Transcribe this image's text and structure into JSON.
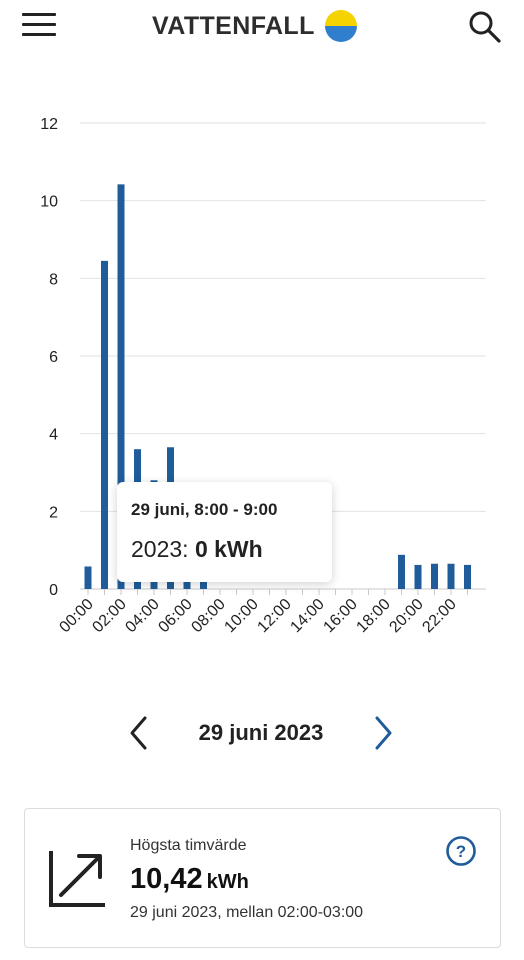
{
  "header": {
    "brand": "VATTENFALL",
    "icons": {
      "menu": "hamburger-menu-icon",
      "search": "search-icon",
      "logo": "vattenfall-logo-icon"
    },
    "colors": {
      "logo_top": "#f5d300",
      "logo_bottom": "#2f7fce"
    }
  },
  "chart_data": {
    "type": "bar",
    "categories": [
      "00:00",
      "01:00",
      "02:00",
      "03:00",
      "04:00",
      "05:00",
      "06:00",
      "07:00",
      "08:00",
      "09:00",
      "10:00",
      "11:00",
      "12:00",
      "13:00",
      "14:00",
      "15:00",
      "16:00",
      "17:00",
      "18:00",
      "19:00",
      "20:00",
      "21:00",
      "22:00",
      "23:00"
    ],
    "tick_labels": [
      "00:00",
      "02:00",
      "04:00",
      "06:00",
      "08:00",
      "10:00",
      "12:00",
      "14:00",
      "16:00",
      "18:00",
      "20:00",
      "22:00"
    ],
    "values": [
      0.58,
      8.45,
      10.42,
      3.6,
      2.8,
      3.65,
      2.0,
      1.3,
      0,
      0,
      0,
      0,
      0,
      0,
      0,
      0,
      0,
      0,
      0,
      0.88,
      0.62,
      0.65,
      0.65,
      0.62
    ],
    "ylim": [
      0,
      12
    ],
    "yticks": [
      0,
      2,
      4,
      6,
      8,
      10,
      12
    ],
    "grid": true,
    "bar_color": "#1f5c99",
    "title": "",
    "xlabel": "",
    "ylabel": ""
  },
  "tooltip": {
    "title": "29 juni, 8:00 - 9:00",
    "year": "2023:",
    "value": "0 kWh"
  },
  "date_nav": {
    "date": "29 juni 2023",
    "icons": {
      "prev": "chevron-left-icon",
      "next": "chevron-right-icon"
    }
  },
  "card": {
    "label": "Högsta timvärde",
    "value": "10,42",
    "unit": "kWh",
    "detail": "29 juni 2023, mellan 02:00-03:00",
    "icons": {
      "trend": "trend-up-icon",
      "help": "help-icon"
    },
    "help_color": "#1f5c99"
  }
}
